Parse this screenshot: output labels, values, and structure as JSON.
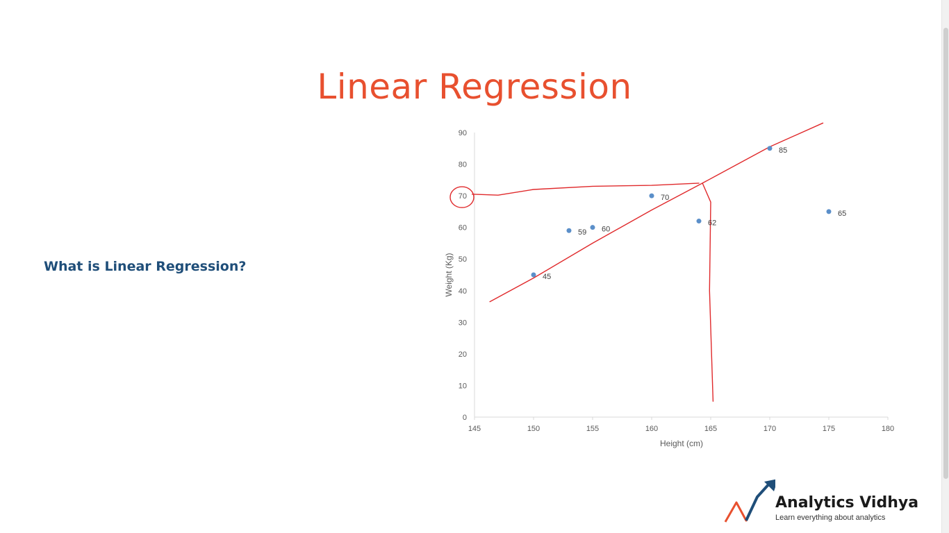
{
  "slide": {
    "title": "Linear Regression",
    "question": "What is Linear Regression?"
  },
  "colors": {
    "title": "#e8502f",
    "question": "#1f4e79",
    "point": "#5b8fc9",
    "annotation": "#e0292b",
    "axis": "#d9d9d9"
  },
  "chart_data": {
    "type": "scatter",
    "xlabel": "Height (cm)",
    "ylabel": "Weight (Kg)",
    "xlim": [
      145,
      180
    ],
    "ylim": [
      0,
      90
    ],
    "x_ticks": [
      145,
      150,
      155,
      160,
      165,
      170,
      175,
      180
    ],
    "y_ticks": [
      0,
      10,
      20,
      30,
      40,
      50,
      60,
      70,
      80,
      90
    ],
    "grid": false,
    "series": [
      {
        "points": [
          {
            "x": 150,
            "y": 45,
            "label": "45"
          },
          {
            "x": 153,
            "y": 59,
            "label": "59"
          },
          {
            "x": 155,
            "y": 60,
            "label": "60"
          },
          {
            "x": 160,
            "y": 70,
            "label": "70"
          },
          {
            "x": 164,
            "y": 62,
            "label": "62"
          },
          {
            "x": 170,
            "y": 85,
            "label": "85"
          },
          {
            "x": 175,
            "y": 65,
            "label": "65"
          }
        ]
      }
    ],
    "annotations": {
      "regression_line": [
        [
          146.3,
          36.5
        ],
        [
          150,
          44
        ],
        [
          155,
          55
        ],
        [
          160,
          65.5
        ],
        [
          164.3,
          74
        ],
        [
          170,
          85.5
        ],
        [
          174.5,
          93
        ]
      ],
      "horizontal_guide": [
        [
          144.8,
          70.5
        ],
        [
          147,
          70.2
        ],
        [
          150,
          72
        ],
        [
          155,
          73
        ],
        [
          160,
          73.3
        ],
        [
          164,
          74
        ]
      ],
      "vertical_guide": [
        [
          164.3,
          74
        ],
        [
          165,
          68
        ],
        [
          164.9,
          40
        ],
        [
          165.2,
          5
        ]
      ],
      "circled_tick": 70
    }
  },
  "logo": {
    "name": "Analytics Vidhya",
    "tagline": "Learn everything about analytics"
  }
}
